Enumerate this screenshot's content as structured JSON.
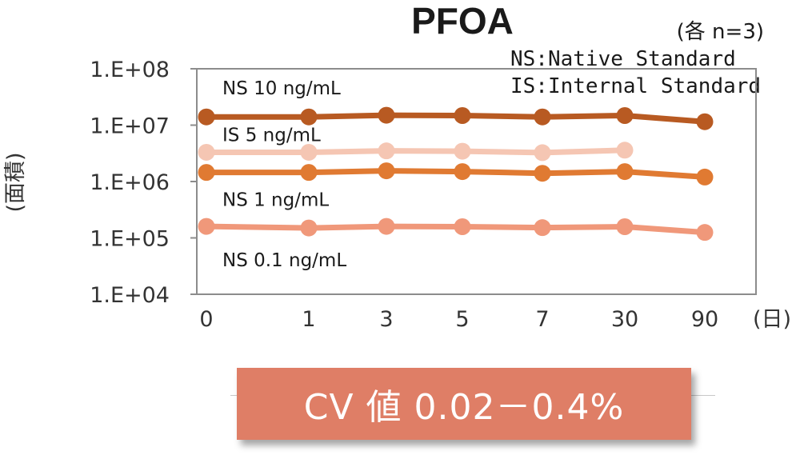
{
  "chart_data": {
    "type": "line",
    "title": "PFOA",
    "note": "(各 n=3)",
    "legend_lines": [
      "NS:Native Standard",
      "IS:Internal Standard"
    ],
    "xlabel": "(日)",
    "ylabel": "(面積)",
    "y_scale": "log",
    "ylim": [
      10000,
      100000000
    ],
    "y_ticks": [
      10000,
      100000,
      1000000,
      10000000,
      100000000
    ],
    "y_tick_labels": [
      "1.E+04",
      "1.E+05",
      "1.E+06",
      "1.E+07",
      "1.E+08"
    ],
    "categories": [
      "0",
      "1",
      "3",
      "5",
      "7",
      "30",
      "90"
    ],
    "series": [
      {
        "name": "NS 10 ng/mL",
        "color": "#b85a22",
        "values": [
          14000000,
          14000000,
          15000000,
          14800000,
          14000000,
          14800000,
          11500000
        ]
      },
      {
        "name": "IS 5 ng/mL",
        "color": "#f5c6b3",
        "values": [
          3300000,
          3300000,
          3500000,
          3450000,
          3250000,
          3600000,
          null
        ]
      },
      {
        "name": "NS 1 ng/mL",
        "color": "#e07a32",
        "values": [
          1450000,
          1450000,
          1550000,
          1500000,
          1400000,
          1500000,
          1200000
        ]
      },
      {
        "name": "NS 0.1 ng/mL",
        "color": "#f0987a",
        "values": [
          160000,
          150000,
          160000,
          158000,
          152000,
          158000,
          125000
        ]
      }
    ]
  },
  "cv_banner": {
    "text": "CV 値 0.02－0.4%",
    "color": "#df7e66"
  }
}
